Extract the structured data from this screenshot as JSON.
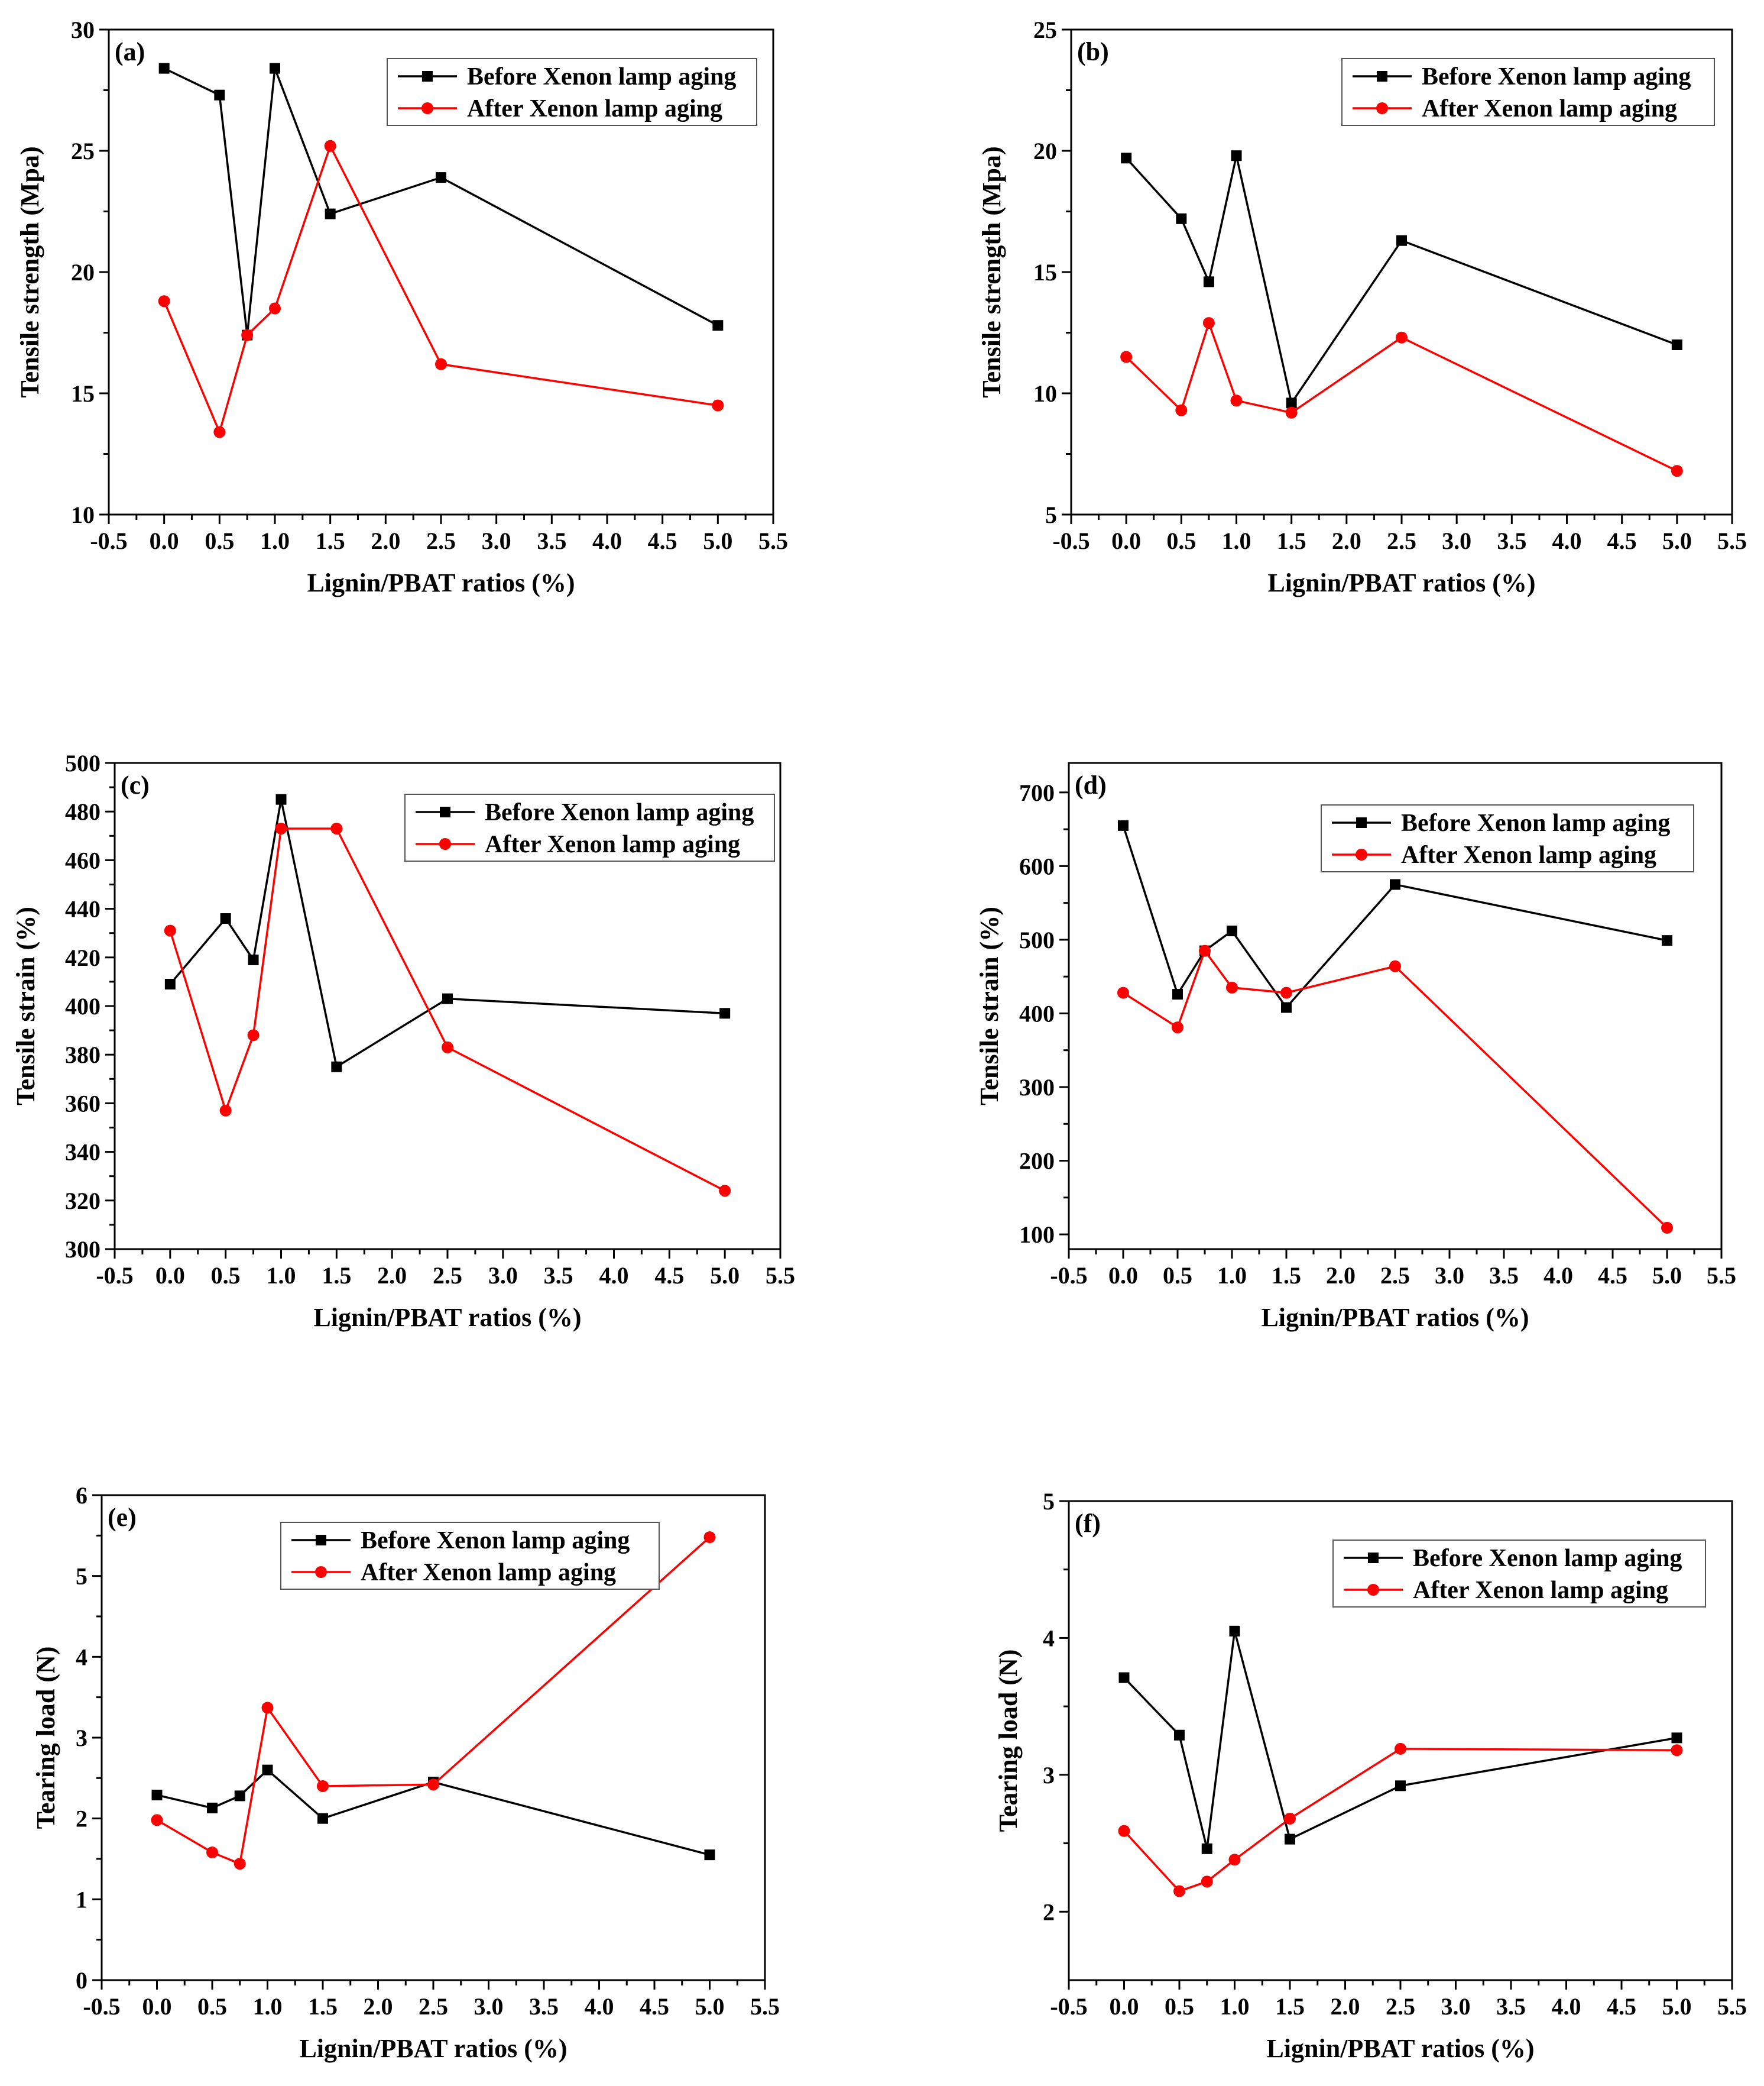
{
  "figure": {
    "colors": {
      "before": "#000000",
      "after": "#ff0000"
    },
    "legend": {
      "before_label": "Before Xenon lamp aging",
      "after_label": "After Xenon lamp aging"
    }
  },
  "chart_data": [
    {
      "panel": "(a)",
      "type": "line",
      "xlabel": "Lignin/PBAT ratios (%)",
      "ylabel": "Tensile strength (Mpa)",
      "xlim": [
        -0.5,
        5.5
      ],
      "ylim": [
        10,
        30
      ],
      "xticks": [
        "-0.5",
        "0.0",
        "0.5",
        "1.0",
        "1.5",
        "2.0",
        "2.5",
        "3.0",
        "3.5",
        "4.0",
        "4.5",
        "5.0",
        "5.5"
      ],
      "yticks": [
        "10",
        "15",
        "20",
        "25",
        "30"
      ],
      "x": [
        0,
        0.5,
        0.75,
        1.0,
        1.5,
        2.5,
        5.0
      ],
      "series": [
        {
          "name": "Before Xenon lamp aging",
          "values": [
            28.4,
            27.3,
            17.4,
            28.4,
            22.4,
            23.9,
            17.8
          ]
        },
        {
          "name": "After Xenon lamp aging",
          "values": [
            18.8,
            13.4,
            17.4,
            18.5,
            25.2,
            16.2,
            14.5
          ]
        }
      ],
      "legend_position": "top-right"
    },
    {
      "panel": "(b)",
      "type": "line",
      "xlabel": "Lignin/PBAT ratios (%)",
      "ylabel": "Tensile strength (Mpa)",
      "xlim": [
        -0.5,
        5.5
      ],
      "ylim": [
        5,
        25
      ],
      "xticks": [
        "-0.5",
        "0.0",
        "0.5",
        "1.0",
        "1.5",
        "2.0",
        "2.5",
        "3.0",
        "3.5",
        "4.0",
        "4.5",
        "5.0",
        "5.5"
      ],
      "yticks": [
        "5",
        "10",
        "15",
        "20",
        "25"
      ],
      "x": [
        0,
        0.5,
        0.75,
        1.0,
        1.5,
        2.5,
        5.0
      ],
      "series": [
        {
          "name": "Before Xenon lamp aging",
          "values": [
            19.7,
            17.2,
            14.6,
            19.8,
            9.6,
            16.3,
            12.0
          ]
        },
        {
          "name": "After Xenon lamp aging",
          "values": [
            11.5,
            9.3,
            12.9,
            9.7,
            9.2,
            12.3,
            6.8
          ]
        }
      ],
      "legend_position": "top-right"
    },
    {
      "panel": "(c)",
      "type": "line",
      "xlabel": "Lignin/PBAT ratios (%)",
      "ylabel": "Tensile strain (%)",
      "xlim": [
        -0.5,
        5.5
      ],
      "ylim": [
        300,
        500
      ],
      "xticks": [
        "-0.5",
        "0.0",
        "0.5",
        "1.0",
        "1.5",
        "2.0",
        "2.5",
        "3.0",
        "3.5",
        "4.0",
        "4.5",
        "5.0",
        "5.5"
      ],
      "yticks": [
        "300",
        "320",
        "340",
        "360",
        "380",
        "400",
        "420",
        "440",
        "460",
        "480",
        "500"
      ],
      "x": [
        0,
        0.5,
        0.75,
        1.0,
        1.5,
        2.5,
        5.0
      ],
      "series": [
        {
          "name": "Before Xenon lamp aging",
          "values": [
            409,
            436,
            419,
            485,
            375,
            403,
            397
          ]
        },
        {
          "name": "After Xenon lamp aging",
          "values": [
            431,
            357,
            388,
            473,
            473,
            383,
            324
          ]
        }
      ],
      "legend_position": "top-right"
    },
    {
      "panel": "(d)",
      "type": "line",
      "xlabel": "Lignin/PBAT ratios (%)",
      "ylabel": "Tensile strain (%)",
      "xlim": [
        -0.5,
        5.5
      ],
      "ylim": [
        80,
        740
      ],
      "xticks": [
        "-0.5",
        "0.0",
        "0.5",
        "1.0",
        "1.5",
        "2.0",
        "2.5",
        "3.0",
        "3.5",
        "4.0",
        "4.5",
        "5.0",
        "5.5"
      ],
      "yticks": [
        "100",
        "200",
        "300",
        "400",
        "500",
        "600",
        "700"
      ],
      "x": [
        0,
        0.5,
        0.75,
        1.0,
        1.5,
        2.5,
        5.0
      ],
      "series": [
        {
          "name": "Before Xenon lamp aging",
          "values": [
            655,
            426,
            485,
            512,
            408,
            575,
            499
          ]
        },
        {
          "name": "After Xenon lamp aging",
          "values": [
            428,
            381,
            485,
            435,
            428,
            464,
            109
          ]
        }
      ],
      "legend_position": "top-right"
    },
    {
      "panel": "(e)",
      "type": "line",
      "xlabel": "Lignin/PBAT ratios (%)",
      "ylabel": "Tearing load (N)",
      "xlim": [
        -0.5,
        5.5
      ],
      "ylim": [
        0,
        6
      ],
      "xticks": [
        "-0.5",
        "0.0",
        "0.5",
        "1.0",
        "1.5",
        "2.0",
        "2.5",
        "3.0",
        "3.5",
        "4.0",
        "4.5",
        "5.0",
        "5.5"
      ],
      "yticks": [
        "0",
        "1",
        "2",
        "3",
        "4",
        "5",
        "6"
      ],
      "x": [
        0,
        0.5,
        0.75,
        1.0,
        1.5,
        2.5,
        5.0
      ],
      "series": [
        {
          "name": "Before Xenon lamp aging",
          "values": [
            2.29,
            2.13,
            2.28,
            2.6,
            2.0,
            2.45,
            1.55
          ]
        },
        {
          "name": "After Xenon lamp aging",
          "values": [
            1.98,
            1.58,
            1.44,
            3.37,
            2.4,
            2.42,
            5.48
          ]
        }
      ],
      "legend_position": "top-right"
    },
    {
      "panel": "(f)",
      "type": "line",
      "xlabel": "Lignin/PBAT ratios (%)",
      "ylabel": "Tearing load (N)",
      "xlim": [
        -0.5,
        5.5
      ],
      "ylim": [
        1.5,
        5
      ],
      "xticks": [
        "-0.5",
        "0.0",
        "0.5",
        "1.0",
        "1.5",
        "2.0",
        "2.5",
        "3.0",
        "3.5",
        "4.0",
        "4.5",
        "5.0",
        "5.5"
      ],
      "yticks": [
        "2",
        "3",
        "4",
        "5"
      ],
      "x": [
        0,
        0.5,
        0.75,
        1.0,
        1.5,
        2.5,
        5.0
      ],
      "series": [
        {
          "name": "Before Xenon lamp aging",
          "values": [
            3.71,
            3.29,
            2.46,
            4.05,
            2.53,
            2.92,
            3.27
          ]
        },
        {
          "name": "After Xenon lamp aging",
          "values": [
            2.59,
            2.15,
            2.22,
            2.38,
            2.68,
            3.19,
            3.18
          ]
        }
      ],
      "legend_position": "top-right"
    }
  ]
}
